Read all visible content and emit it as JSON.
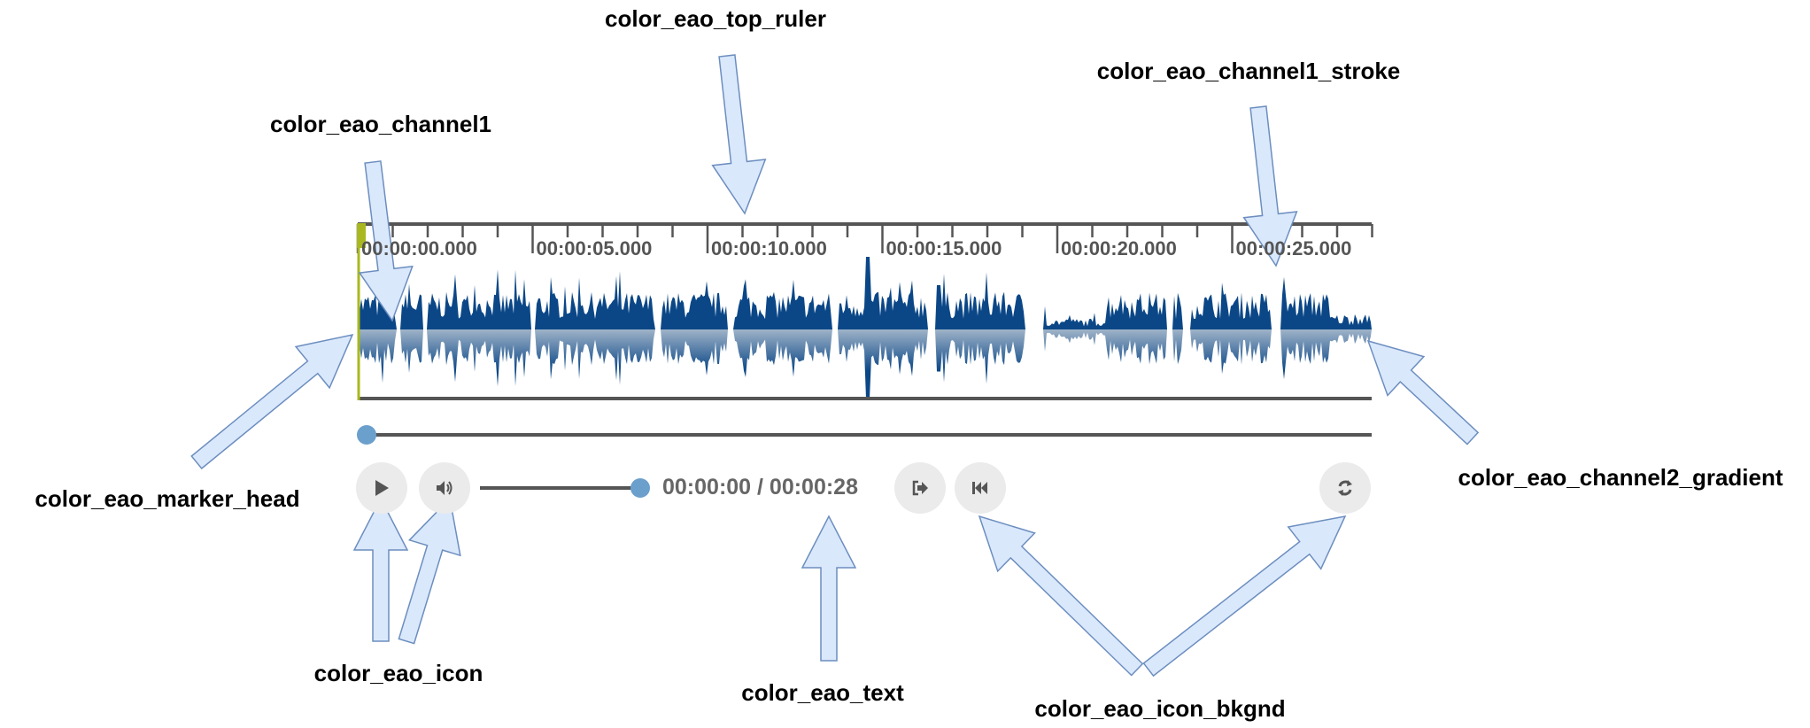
{
  "annotations": {
    "top_ruler": "color_eao_top_ruler",
    "channel1_stroke": "color_eao_channel1_stroke",
    "channel1": "color_eao_channel1",
    "marker_head": "color_eao_marker_head",
    "channel2_gradient": "color_eao_channel2_gradient",
    "icon": "color_eao_icon",
    "text": "color_eao_text",
    "icon_bkgnd": "color_eao_icon_bkgnd"
  },
  "player": {
    "ruler_labels": [
      "00:00:00.000",
      "00:00:05.000",
      "00:00:10.000",
      "00:00:15.000",
      "00:00:20.000",
      "00:00:25.000"
    ],
    "time_display": "00:00:00 / 00:00:28",
    "progress": 0,
    "volume": 1.0,
    "buttons": {
      "play": "play-icon",
      "volume": "volume-icon",
      "export": "export-icon",
      "rewind": "skip-back-icon",
      "reload": "refresh-icon"
    }
  },
  "colors": {
    "ruler": "#555555",
    "channel1": "#0b4787",
    "channel2_gradient_start": "#9fb3c8",
    "channel2_gradient_end": "#0b4787",
    "marker_head": "#a9b820",
    "knob": "#6b9fcc",
    "icon": "#555555",
    "icon_bkgnd": "#ebebeb",
    "text": "#666666",
    "arrow_fill": "#dae8fc",
    "arrow_stroke": "#6c8ebf"
  }
}
